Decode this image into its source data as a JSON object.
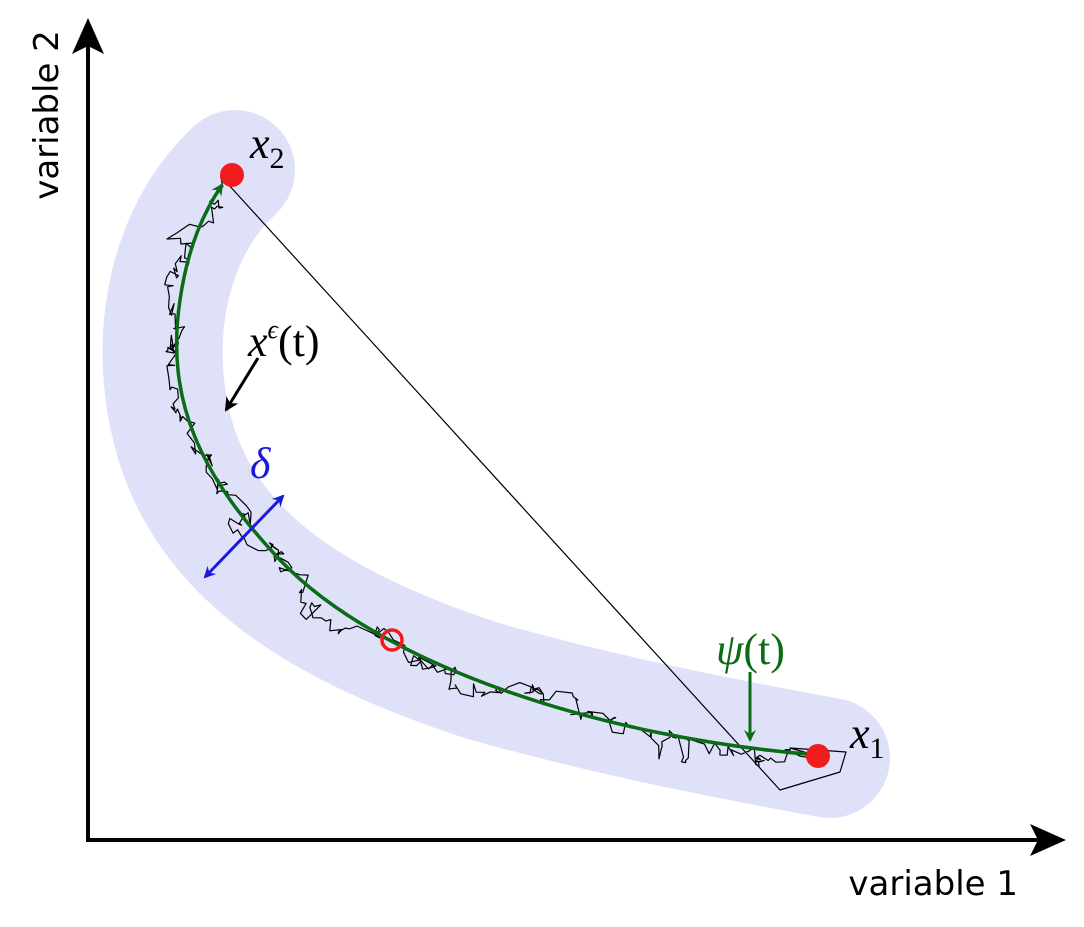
{
  "axes": {
    "x_label": "variable 1",
    "y_label": "variable 2"
  },
  "labels": {
    "x2": {
      "main": "x",
      "sub": "2"
    },
    "x_eps": {
      "main": "x",
      "sup": "ϵ",
      "rest": "(t)"
    },
    "delta": "δ",
    "psi": {
      "main": "ψ",
      "rest": "(t)"
    },
    "x1": {
      "main": "x",
      "sub": "1"
    }
  }
}
